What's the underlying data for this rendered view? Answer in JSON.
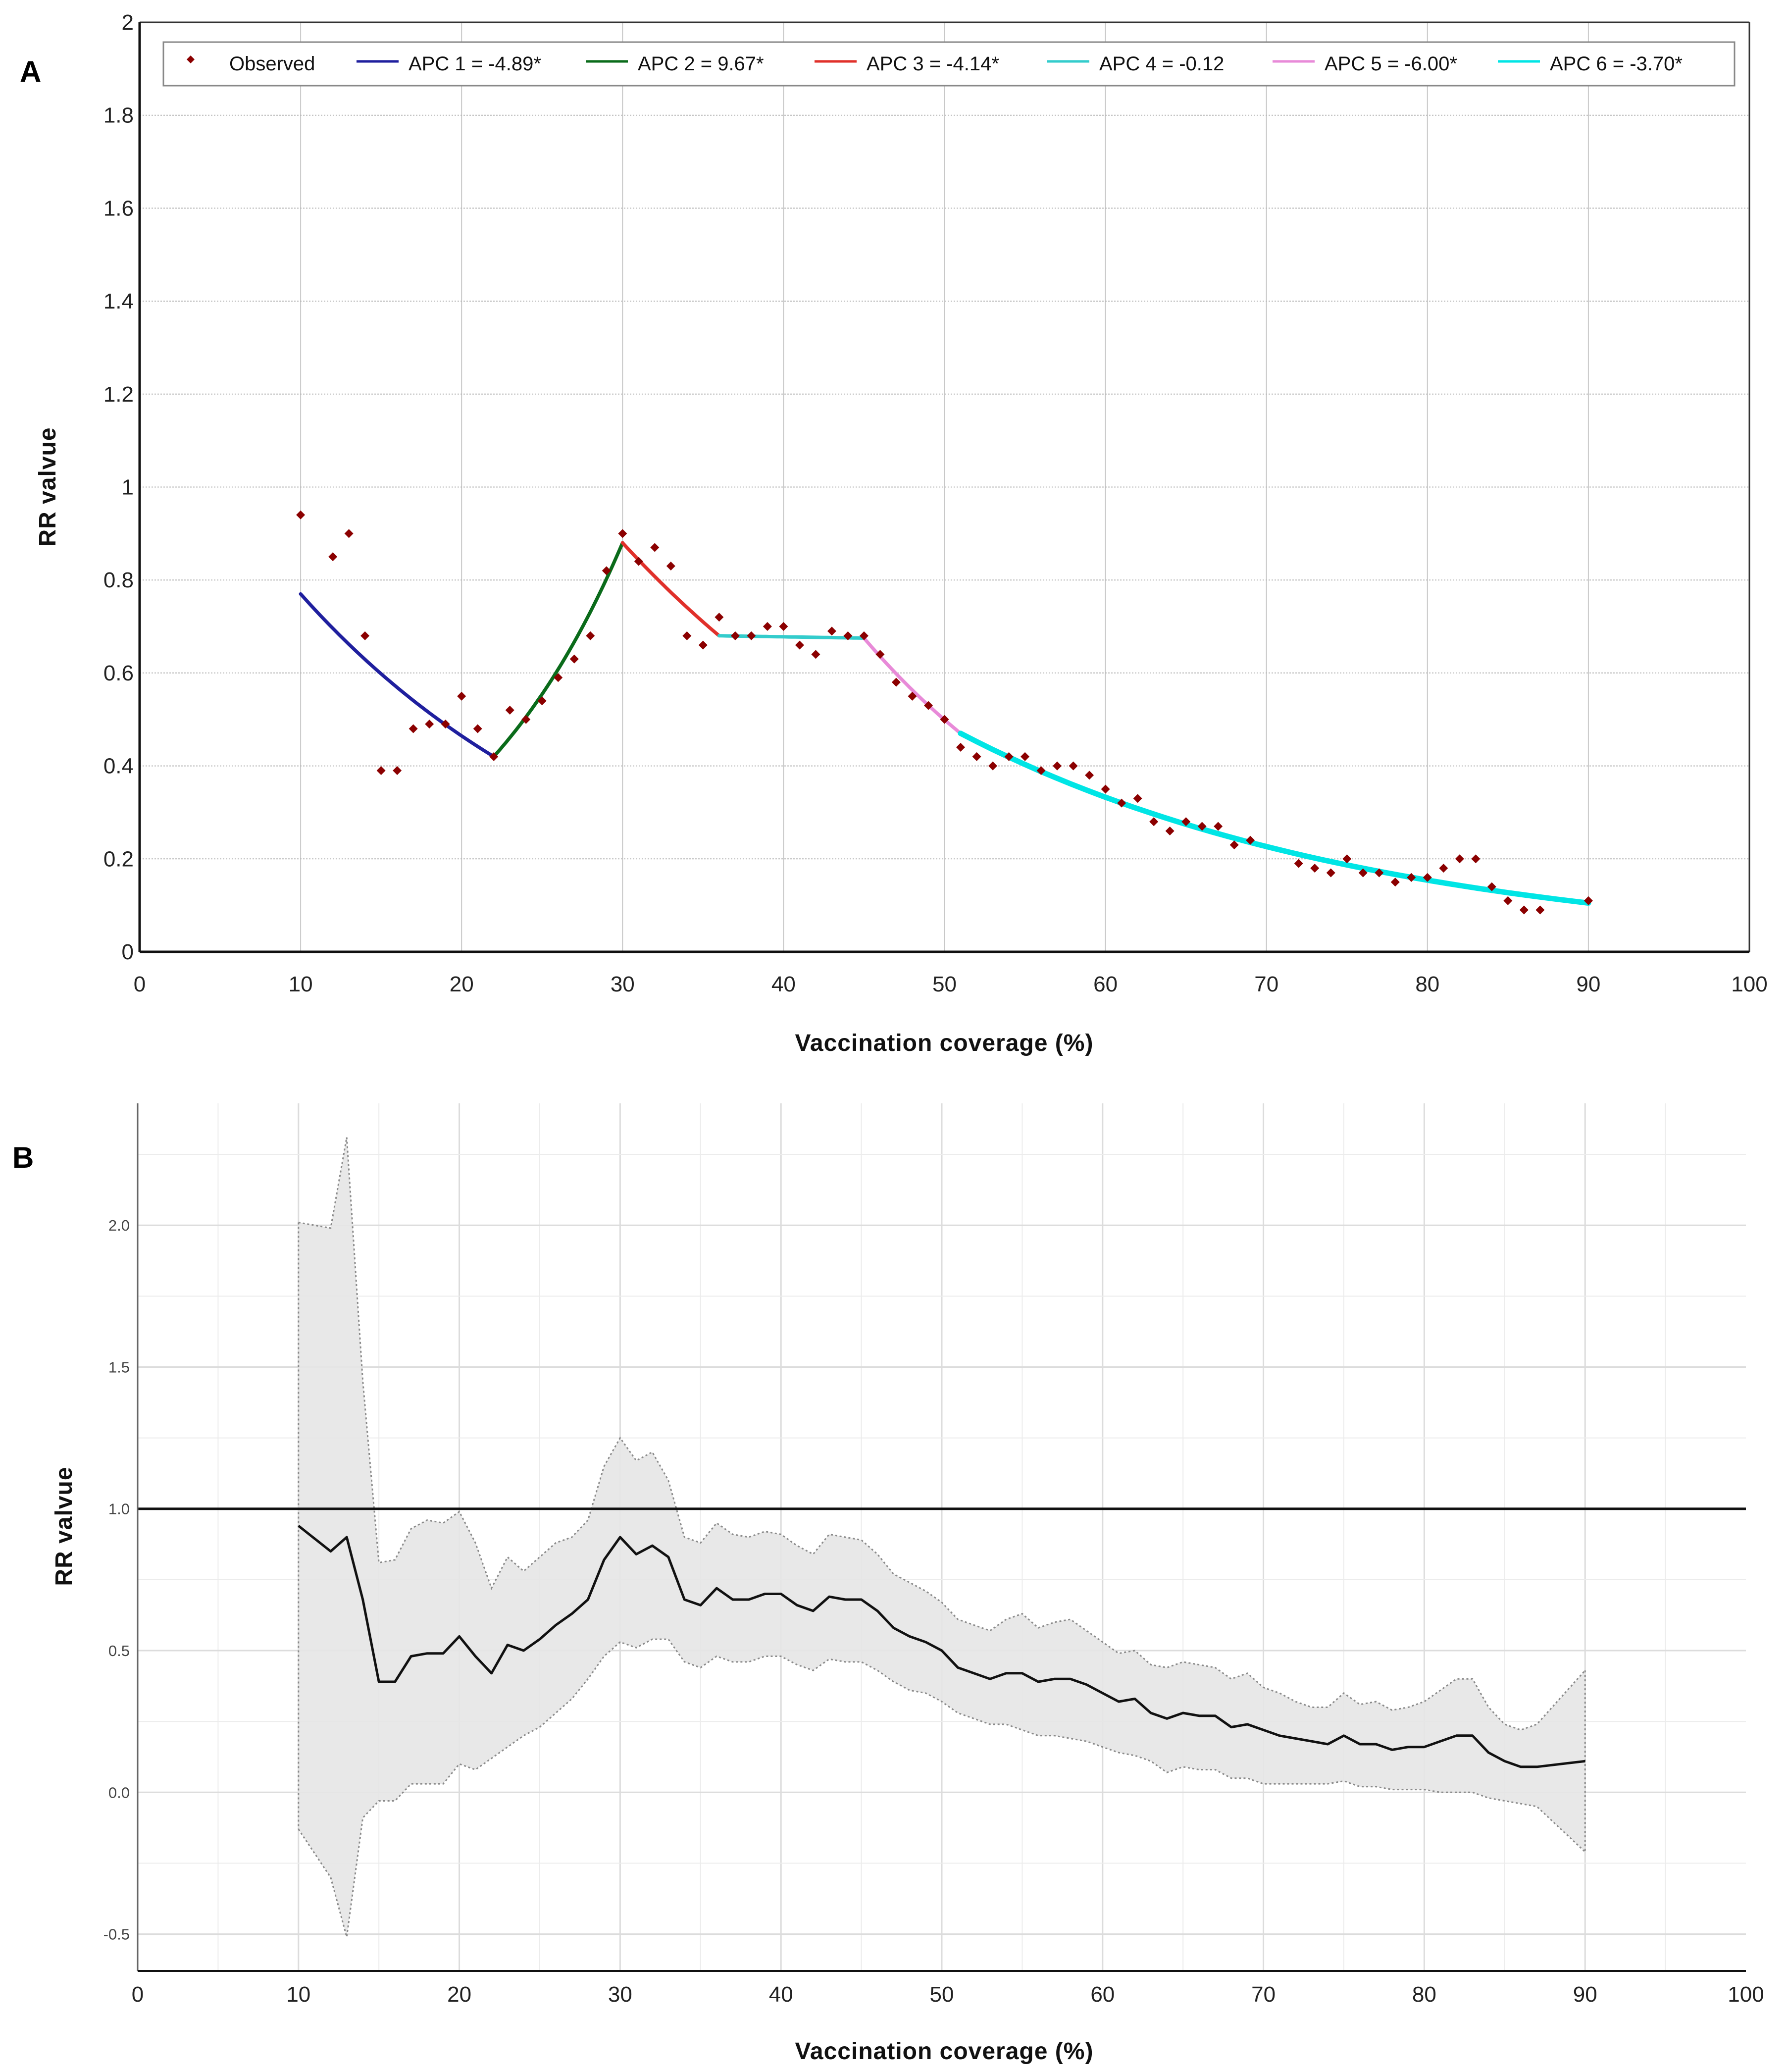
{
  "chart_data": [
    {
      "panel": "A",
      "type": "scatter",
      "panel_label": "A",
      "xlabel": "Vaccination coverage (%)",
      "ylabel": "RR valvue",
      "xlim": [
        0,
        100
      ],
      "ylim": [
        0,
        2
      ],
      "x_ticks": [
        0,
        10,
        20,
        30,
        40,
        50,
        60,
        70,
        80,
        90,
        100
      ],
      "x_tick_labels": [
        "0",
        "10",
        "20",
        "30",
        "40",
        "50",
        "60",
        "70",
        "80",
        "90",
        "100"
      ],
      "y_ticks": [
        0,
        0.2,
        0.4,
        0.6,
        0.8,
        1,
        1.2,
        1.4,
        1.6,
        1.8,
        2
      ],
      "y_tick_labels": [
        "0",
        "0.2",
        "0.4",
        "0.6",
        "0.8",
        "1",
        "1.2",
        "1.4",
        "1.6",
        "1.8",
        "2"
      ],
      "grid": true,
      "legend_position": "top",
      "legend": [
        {
          "label": "Observed",
          "marker": "diamond",
          "color": "#8b0000"
        },
        {
          "label": "APC 1 = -4.89*",
          "color": "#1f1f9e"
        },
        {
          "label": "APC 2 =  9.67*",
          "color": "#0a6b1a"
        },
        {
          "label": "APC 3 = -4.14*",
          "color": "#e0302a"
        },
        {
          "label": "APC 4 = -0.12",
          "color": "#33cccc"
        },
        {
          "label": "APC 5 = -6.00*",
          "color": "#e88ad8"
        },
        {
          "label": "APC 6 = -3.70*",
          "color": "#00e5e5"
        }
      ],
      "observed": {
        "x": [
          10,
          12,
          13,
          14,
          15,
          16,
          17,
          18,
          19,
          20,
          21,
          22,
          23,
          24,
          25,
          26,
          27,
          28,
          29,
          30,
          31,
          32,
          33,
          34,
          35,
          36,
          37,
          38,
          39,
          40,
          41,
          42,
          43,
          44,
          45,
          46,
          47,
          48,
          49,
          50,
          51,
          52,
          53,
          54,
          55,
          56,
          57,
          58,
          59,
          60,
          61,
          62,
          63,
          64,
          65,
          66,
          67,
          68,
          69,
          72,
          73,
          74,
          75,
          76,
          77,
          78,
          79,
          80,
          81,
          82,
          83,
          84,
          85,
          86,
          87,
          90
        ],
        "y": [
          0.94,
          0.85,
          0.9,
          0.68,
          0.39,
          0.39,
          0.48,
          0.49,
          0.49,
          0.55,
          0.48,
          0.42,
          0.52,
          0.5,
          0.54,
          0.59,
          0.63,
          0.68,
          0.82,
          0.9,
          0.84,
          0.87,
          0.83,
          0.68,
          0.66,
          0.72,
          0.68,
          0.68,
          0.7,
          0.7,
          0.66,
          0.64,
          0.69,
          0.68,
          0.68,
          0.64,
          0.58,
          0.55,
          0.53,
          0.5,
          0.44,
          0.42,
          0.4,
          0.42,
          0.42,
          0.39,
          0.4,
          0.4,
          0.38,
          0.35,
          0.32,
          0.33,
          0.28,
          0.26,
          0.28,
          0.27,
          0.27,
          0.23,
          0.24,
          0.19,
          0.18,
          0.17,
          0.2,
          0.17,
          0.17,
          0.15,
          0.16,
          0.16,
          0.18,
          0.2,
          0.2,
          0.14,
          0.11,
          0.09,
          0.09,
          0.11
        ]
      },
      "segments": [
        {
          "name": "APC 1",
          "x_start": 10,
          "x_end": 22,
          "y_start": 0.77,
          "y_end": 0.42,
          "color": "#1f1f9e"
        },
        {
          "name": "APC 2",
          "x_start": 22,
          "x_end": 30,
          "y_start": 0.42,
          "y_end": 0.88,
          "color": "#0a6b1a"
        },
        {
          "name": "APC 3",
          "x_start": 30,
          "x_end": 36,
          "y_start": 0.88,
          "y_end": 0.68,
          "color": "#e0302a"
        },
        {
          "name": "APC 4",
          "x_start": 36,
          "x_end": 45,
          "y_start": 0.68,
          "y_end": 0.675,
          "color": "#33cccc"
        },
        {
          "name": "APC 5",
          "x_start": 45,
          "x_end": 51,
          "y_start": 0.675,
          "y_end": 0.47,
          "color": "#e88ad8"
        },
        {
          "name": "APC 6",
          "x_start": 51,
          "x_end": 90,
          "y_start": 0.47,
          "y_end": 0.105,
          "color": "#00e5e5"
        }
      ]
    },
    {
      "panel": "B",
      "type": "line",
      "panel_label": "B",
      "xlabel": "Vaccination coverage (%)",
      "ylabel": "RR valvue",
      "xlim": [
        0,
        100
      ],
      "ylim": [
        -0.63,
        2.43
      ],
      "x_ticks": [
        0,
        10,
        20,
        30,
        40,
        50,
        60,
        70,
        80,
        90,
        100
      ],
      "x_tick_labels": [
        "0",
        "10",
        "20",
        "30",
        "40",
        "50",
        "60",
        "70",
        "80",
        "90",
        "100"
      ],
      "y_ticks": [
        -0.5,
        0.0,
        0.5,
        1.0,
        1.5,
        2.0
      ],
      "y_tick_labels": [
        "-0.5",
        "0.0",
        "0.5",
        "1.0",
        "1.5",
        "2.0"
      ],
      "grid": true,
      "reference_line": 1.0,
      "series": [
        {
          "name": "RR",
          "x": [
            10,
            12,
            13,
            14,
            15,
            16,
            17,
            18,
            19,
            20,
            21,
            22,
            23,
            24,
            25,
            26,
            27,
            28,
            29,
            30,
            31,
            32,
            33,
            34,
            35,
            36,
            37,
            38,
            39,
            40,
            41,
            42,
            43,
            44,
            45,
            46,
            47,
            48,
            49,
            50,
            51,
            52,
            53,
            54,
            55,
            56,
            57,
            58,
            59,
            60,
            61,
            62,
            63,
            64,
            65,
            66,
            67,
            68,
            69,
            70,
            71,
            72,
            73,
            74,
            75,
            76,
            77,
            78,
            79,
            80,
            81,
            82,
            83,
            84,
            85,
            86,
            87,
            90
          ],
          "values": [
            0.94,
            0.85,
            0.9,
            0.68,
            0.39,
            0.39,
            0.48,
            0.49,
            0.49,
            0.55,
            0.48,
            0.42,
            0.52,
            0.5,
            0.54,
            0.59,
            0.63,
            0.68,
            0.82,
            0.9,
            0.84,
            0.87,
            0.83,
            0.68,
            0.66,
            0.72,
            0.68,
            0.68,
            0.7,
            0.7,
            0.66,
            0.64,
            0.69,
            0.68,
            0.68,
            0.64,
            0.58,
            0.55,
            0.53,
            0.5,
            0.44,
            0.42,
            0.4,
            0.42,
            0.42,
            0.39,
            0.4,
            0.4,
            0.38,
            0.35,
            0.32,
            0.33,
            0.28,
            0.26,
            0.28,
            0.27,
            0.27,
            0.23,
            0.24,
            0.22,
            0.2,
            0.19,
            0.18,
            0.17,
            0.2,
            0.17,
            0.17,
            0.15,
            0.16,
            0.16,
            0.18,
            0.2,
            0.2,
            0.14,
            0.11,
            0.09,
            0.09,
            0.11
          ]
        },
        {
          "name": "Upper CI",
          "x": [
            10,
            12,
            13,
            14,
            15,
            16,
            17,
            18,
            19,
            20,
            21,
            22,
            23,
            24,
            25,
            26,
            27,
            28,
            29,
            30,
            31,
            32,
            33,
            34,
            35,
            36,
            37,
            38,
            39,
            40,
            41,
            42,
            43,
            44,
            45,
            46,
            47,
            48,
            49,
            50,
            51,
            52,
            53,
            54,
            55,
            56,
            57,
            58,
            59,
            60,
            61,
            62,
            63,
            64,
            65,
            66,
            67,
            68,
            69,
            70,
            71,
            72,
            73,
            74,
            75,
            76,
            77,
            78,
            79,
            80,
            81,
            82,
            83,
            84,
            85,
            86,
            87,
            90
          ],
          "values": [
            2.01,
            1.99,
            2.31,
            1.45,
            0.81,
            0.82,
            0.93,
            0.96,
            0.95,
            0.99,
            0.88,
            0.72,
            0.83,
            0.78,
            0.83,
            0.88,
            0.9,
            0.96,
            1.15,
            1.25,
            1.17,
            1.2,
            1.1,
            0.9,
            0.88,
            0.95,
            0.91,
            0.9,
            0.92,
            0.91,
            0.87,
            0.84,
            0.91,
            0.9,
            0.89,
            0.84,
            0.77,
            0.74,
            0.71,
            0.67,
            0.61,
            0.59,
            0.57,
            0.61,
            0.63,
            0.58,
            0.6,
            0.61,
            0.57,
            0.53,
            0.49,
            0.5,
            0.45,
            0.44,
            0.46,
            0.45,
            0.44,
            0.4,
            0.42,
            0.37,
            0.35,
            0.32,
            0.3,
            0.3,
            0.35,
            0.31,
            0.32,
            0.29,
            0.3,
            0.32,
            0.36,
            0.4,
            0.4,
            0.3,
            0.24,
            0.22,
            0.24,
            0.43
          ]
        },
        {
          "name": "Lower CI",
          "x": [
            10,
            12,
            13,
            14,
            15,
            16,
            17,
            18,
            19,
            20,
            21,
            22,
            23,
            24,
            25,
            26,
            27,
            28,
            29,
            30,
            31,
            32,
            33,
            34,
            35,
            36,
            37,
            38,
            39,
            40,
            41,
            42,
            43,
            44,
            45,
            46,
            47,
            48,
            49,
            50,
            51,
            52,
            53,
            54,
            55,
            56,
            57,
            58,
            59,
            60,
            61,
            62,
            63,
            64,
            65,
            66,
            67,
            68,
            69,
            70,
            71,
            72,
            73,
            74,
            75,
            76,
            77,
            78,
            79,
            80,
            81,
            82,
            83,
            84,
            85,
            86,
            87,
            90
          ],
          "values": [
            -0.13,
            -0.3,
            -0.51,
            -0.09,
            -0.03,
            -0.03,
            0.03,
            0.03,
            0.03,
            0.1,
            0.08,
            0.12,
            0.16,
            0.2,
            0.23,
            0.28,
            0.33,
            0.4,
            0.48,
            0.53,
            0.51,
            0.54,
            0.54,
            0.46,
            0.44,
            0.48,
            0.46,
            0.46,
            0.48,
            0.48,
            0.45,
            0.43,
            0.47,
            0.46,
            0.46,
            0.43,
            0.39,
            0.36,
            0.35,
            0.32,
            0.28,
            0.26,
            0.24,
            0.24,
            0.22,
            0.2,
            0.2,
            0.19,
            0.18,
            0.16,
            0.14,
            0.13,
            0.11,
            0.07,
            0.09,
            0.08,
            0.08,
            0.05,
            0.05,
            0.03,
            0.03,
            0.03,
            0.03,
            0.03,
            0.04,
            0.02,
            0.02,
            0.01,
            0.01,
            0.01,
            0.0,
            0.0,
            0.0,
            -0.02,
            -0.03,
            -0.04,
            -0.05,
            -0.21
          ]
        }
      ]
    }
  ]
}
